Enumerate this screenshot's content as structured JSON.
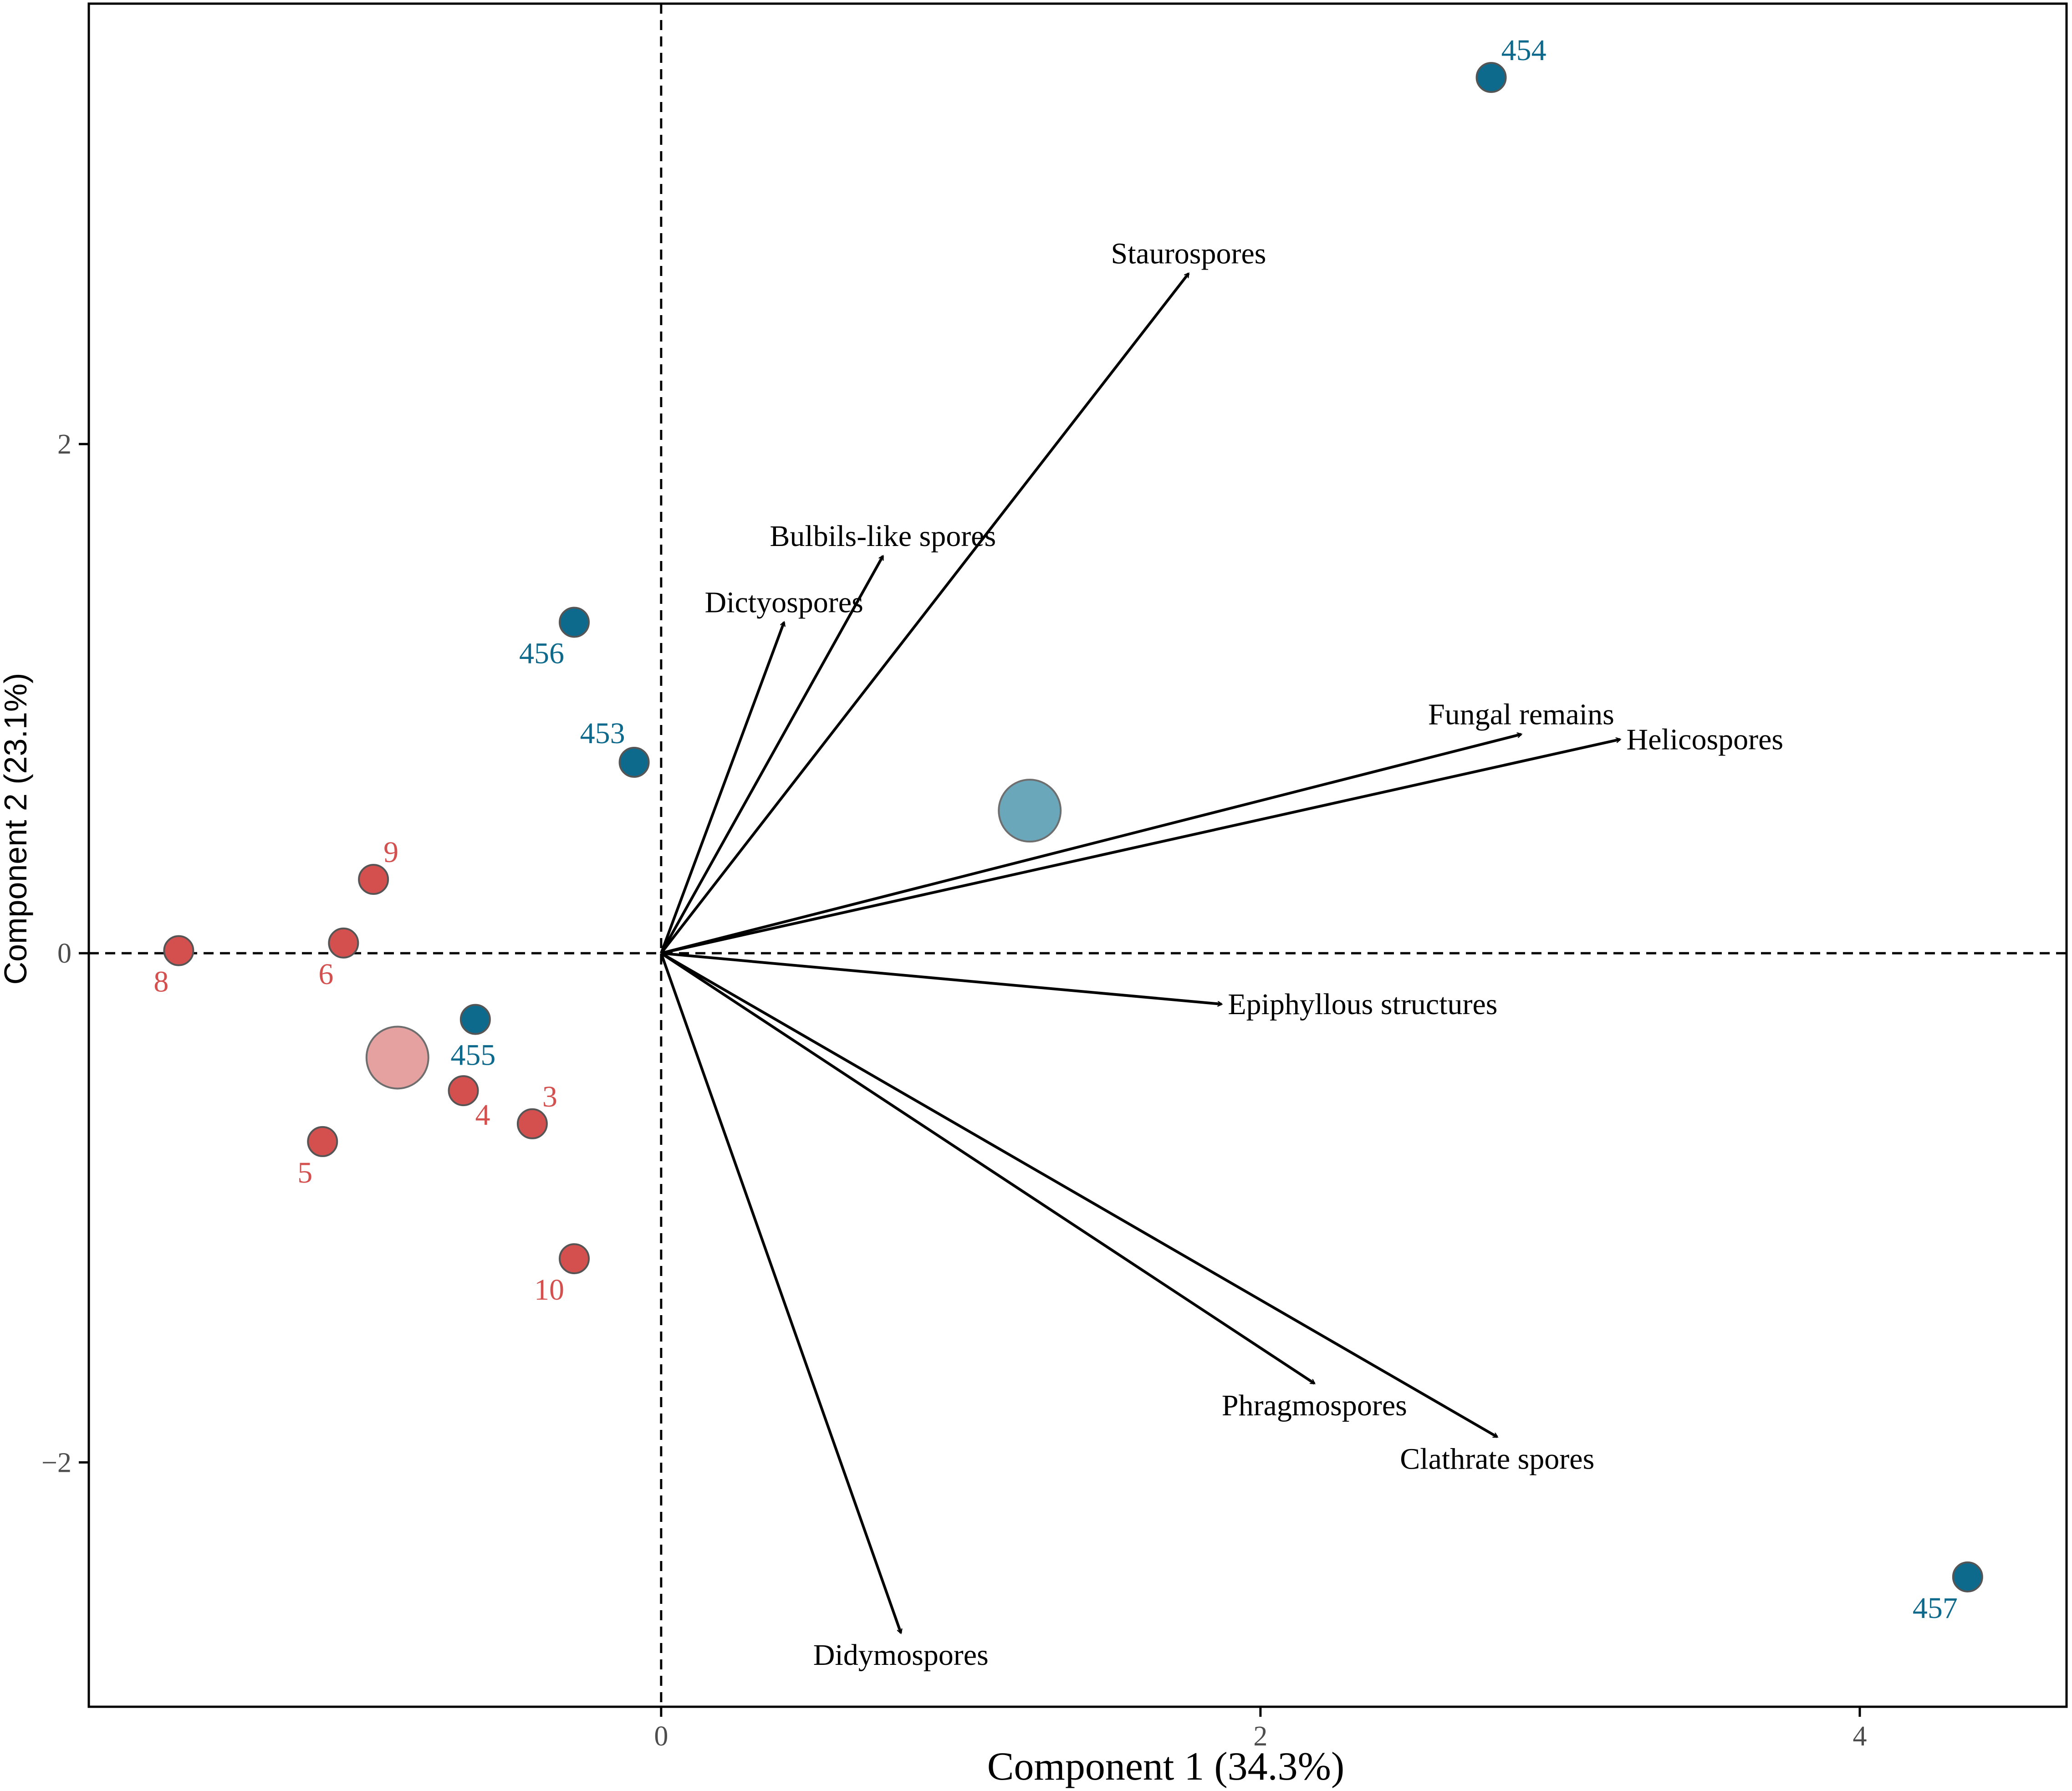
{
  "chart_data": {
    "type": "scatter",
    "subtype": "pca-biplot",
    "xlabel": "Component 1 (34.3%)",
    "ylabel": "Component 2 (23.1%)",
    "xlim": [
      -1.91,
      4.69
    ],
    "ylim": [
      -2.96,
      3.73
    ],
    "x_ticks": [
      0,
      2,
      4
    ],
    "y_ticks": [
      2,
      0,
      -2
    ],
    "x_tick_labels": [
      "0",
      "2",
      "4"
    ],
    "y_tick_labels": [
      "2",
      "0",
      "−2"
    ],
    "reference_lines": {
      "x": 0,
      "y": 0,
      "style": "dashed"
    },
    "colors": {
      "red": "#d4504f",
      "blue": "#0e6a8c",
      "red_centroid": "#e5a0a0",
      "blue_centroid": "#6aa7bb",
      "arrow": "#000000"
    },
    "series": [
      {
        "name": "red group",
        "color": "#d4504f",
        "points": [
          {
            "label": "8",
            "x": -1.61,
            "y": 0.01,
            "label_pos": "bottom-left"
          },
          {
            "label": "6",
            "x": -1.06,
            "y": 0.04,
            "label_pos": "bottom-left"
          },
          {
            "label": "9",
            "x": -0.96,
            "y": 0.29,
            "label_pos": "top-right"
          },
          {
            "label": "4",
            "x": -0.66,
            "y": -0.54,
            "label_pos": "bottom-right"
          },
          {
            "label": "3",
            "x": -0.43,
            "y": -0.67,
            "label_pos": "top-right"
          },
          {
            "label": "5",
            "x": -1.13,
            "y": -0.74,
            "label_pos": "bottom-left"
          },
          {
            "label": "10",
            "x": -0.29,
            "y": -1.2,
            "label_pos": "bottom-left"
          }
        ],
        "centroid": {
          "x": -0.88,
          "y": -0.41
        }
      },
      {
        "name": "blue group",
        "color": "#0e6a8c",
        "points": [
          {
            "label": "454",
            "x": 2.77,
            "y": 3.44,
            "label_pos": "top-right"
          },
          {
            "label": "456",
            "x": -0.29,
            "y": 1.3,
            "label_pos": "bottom-left"
          },
          {
            "label": "453",
            "x": -0.09,
            "y": 0.75,
            "label_pos": "top-left"
          },
          {
            "label": "455",
            "x": -0.62,
            "y": -0.26,
            "label_pos": "bottom"
          },
          {
            "label": "457",
            "x": 4.36,
            "y": -2.45,
            "label_pos": "bottom-left"
          }
        ],
        "centroid": {
          "x": 1.23,
          "y": 0.56
        }
      }
    ],
    "loadings": [
      {
        "name": "Staurospores",
        "x": 1.76,
        "y": 2.67,
        "label_pos": "above"
      },
      {
        "name": "Bulbils-like spores",
        "x": 0.74,
        "y": 1.56,
        "label_pos": "above"
      },
      {
        "name": "Dictyospores",
        "x": 0.41,
        "y": 1.3,
        "label_pos": "above"
      },
      {
        "name": "Fungal remains",
        "x": 2.87,
        "y": 0.86,
        "label_pos": "above"
      },
      {
        "name": "Helicospores",
        "x": 3.2,
        "y": 0.84,
        "label_pos": "right"
      },
      {
        "name": "Epiphyllous structures",
        "x": 1.87,
        "y": -0.2,
        "label_pos": "right"
      },
      {
        "name": "Phragmospores",
        "x": 2.18,
        "y": -1.69,
        "label_pos": "below"
      },
      {
        "name": "Clathrate spores",
        "x": 2.79,
        "y": -1.9,
        "label_pos": "below"
      },
      {
        "name": "Didymospores",
        "x": 0.8,
        "y": -2.67,
        "label_pos": "below"
      }
    ]
  }
}
